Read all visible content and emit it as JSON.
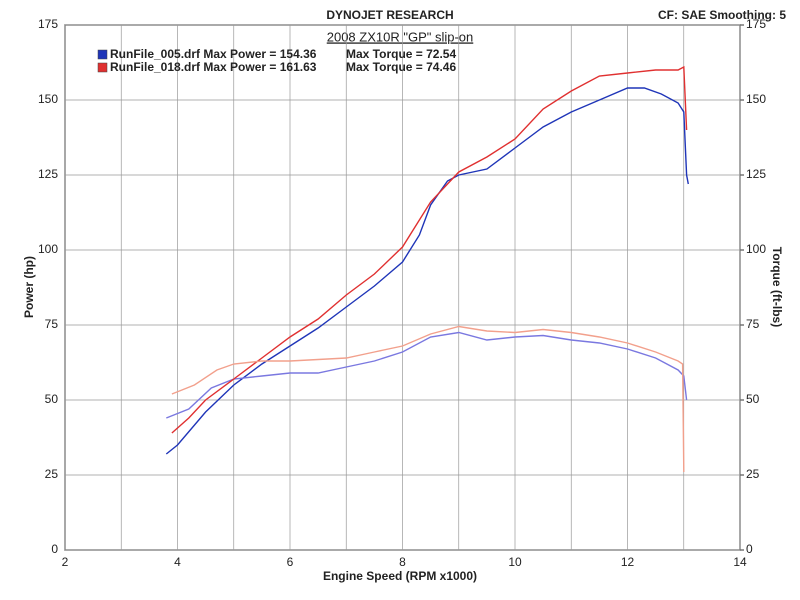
{
  "header": {
    "brand": "DYNOJET RESEARCH",
    "settings": "CF: SAE  Smoothing: 5"
  },
  "chart_data": {
    "type": "line",
    "title": "2008 ZX10R \"GP\" slip-on",
    "x_label": "Engine Speed (RPM x1000)",
    "y_label": "Power (hp)",
    "y2_label": "Torque (ft-lbs)",
    "xlim": [
      2,
      14
    ],
    "xticks": [
      2,
      4,
      6,
      8,
      10,
      12,
      14
    ],
    "x_minor_ticks": [
      3,
      5,
      7,
      9,
      11,
      13
    ],
    "ylim": [
      0,
      175
    ],
    "yticks": [
      0,
      25,
      50,
      75,
      100,
      125,
      150,
      175
    ],
    "y2lim": [
      0,
      175
    ],
    "y2ticks": [
      0,
      25,
      50,
      75,
      100,
      125,
      150,
      175
    ],
    "grid": true,
    "series": [
      {
        "name": "RunFile_005.drf Max Power = 154.36",
        "color": "#1f35b8",
        "x": [
          3.8,
          4,
          4.5,
          5,
          5.5,
          6,
          6.5,
          7,
          7.5,
          8,
          8.3,
          8.5,
          8.8,
          9,
          9.5,
          10,
          10.5,
          11,
          11.5,
          12,
          12.3,
          12.6,
          12.9,
          13.0,
          13.05,
          13.08
        ],
        "values": [
          32,
          35,
          46,
          55,
          62,
          68,
          74,
          81,
          88,
          96,
          105,
          115,
          123,
          125,
          127,
          134,
          141,
          146,
          150,
          154,
          154,
          152,
          149,
          146,
          125,
          122
        ]
      },
      {
        "name": "Max Torque = 72.54",
        "color": "#7a78e0",
        "axis": "y2",
        "x": [
          3.8,
          4.2,
          4.6,
          5,
          5.5,
          6,
          6.5,
          7,
          7.5,
          8,
          8.5,
          9,
          9.5,
          10,
          10.5,
          11,
          11.5,
          12,
          12.5,
          12.9,
          13.0,
          13.05
        ],
        "values": [
          44,
          47,
          54,
          57,
          58,
          59,
          59,
          61,
          63,
          66,
          71,
          72.5,
          70,
          71,
          71.5,
          70,
          69,
          67,
          64,
          60,
          58,
          50
        ]
      },
      {
        "name": "RunFile_018.drf Max Power = 161.63",
        "color": "#e03030",
        "x": [
          3.9,
          4.2,
          4.5,
          5,
          5.5,
          6,
          6.5,
          7,
          7.5,
          8,
          8.5,
          9,
          9.5,
          10,
          10.5,
          11,
          11.5,
          12,
          12.5,
          12.9,
          13.0,
          13.05
        ],
        "values": [
          39,
          44,
          50,
          57,
          64,
          71,
          77,
          85,
          92,
          101,
          116,
          126,
          131,
          137,
          147,
          153,
          158,
          159,
          160,
          160,
          161,
          140
        ]
      },
      {
        "name": "Max Torque = 74.46",
        "color": "#f2a08c",
        "axis": "y2",
        "x": [
          3.9,
          4.3,
          4.7,
          5,
          5.5,
          6,
          6.5,
          7,
          7.5,
          8,
          8.5,
          9,
          9.5,
          10,
          10.5,
          11,
          11.5,
          12,
          12.5,
          12.9,
          12.98,
          13.0
        ],
        "values": [
          52,
          55,
          60,
          62,
          63,
          63,
          63.5,
          64,
          66,
          68,
          72,
          74.5,
          73,
          72.5,
          73.5,
          72.5,
          71,
          69,
          66,
          63,
          62,
          26
        ]
      }
    ]
  }
}
